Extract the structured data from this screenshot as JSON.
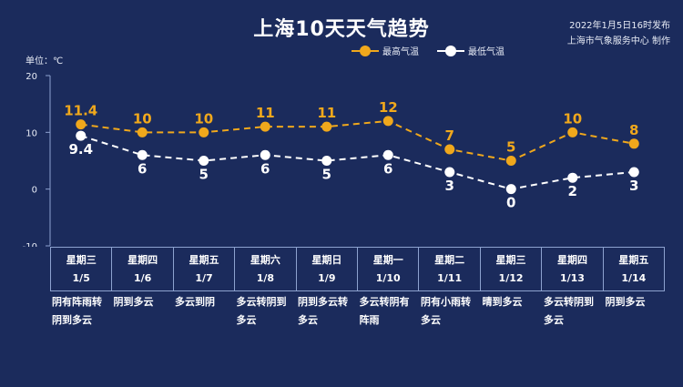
{
  "header": {
    "title": "上海10天天气趋势",
    "issue_time": "2022年1月5日16时发布",
    "issuer": "上海市气象服务中心 制作"
  },
  "unit_label": "单位：℃",
  "legend": {
    "high": "最高气温",
    "low": "最低气温"
  },
  "colors": {
    "background": "#1b2b5c",
    "high": "#f0a81c",
    "low": "#ffffff",
    "axis": "#8da2cf"
  },
  "chart_data": {
    "type": "line",
    "ylim": [
      -10,
      20
    ],
    "yticks": [
      -10,
      0,
      10,
      20
    ],
    "categories": [
      "1/5",
      "1/6",
      "1/7",
      "1/8",
      "1/9",
      "1/10",
      "1/11",
      "1/12",
      "1/13",
      "1/14"
    ],
    "series": [
      {
        "name": "最高气温",
        "values": [
          11.4,
          10,
          10,
          11,
          11,
          12,
          7,
          5,
          10,
          8
        ],
        "labels": [
          "11.4",
          "10",
          "10",
          "11",
          "11",
          "12",
          "7",
          "5",
          "10",
          "8"
        ]
      },
      {
        "name": "最低气温",
        "values": [
          9.4,
          6,
          5,
          6,
          5,
          6,
          3,
          0,
          2,
          3
        ],
        "labels": [
          "9.4",
          "6",
          "5",
          "6",
          "5",
          "6",
          "3",
          "0",
          "2",
          "3"
        ]
      }
    ]
  },
  "days": [
    {
      "weekday": "星期三",
      "date": "1/5",
      "weather": "阴有阵雨转阴到多云"
    },
    {
      "weekday": "星期四",
      "date": "1/6",
      "weather": "阴到多云"
    },
    {
      "weekday": "星期五",
      "date": "1/7",
      "weather": "多云到阴"
    },
    {
      "weekday": "星期六",
      "date": "1/8",
      "weather": "多云转阴到多云"
    },
    {
      "weekday": "星期日",
      "date": "1/9",
      "weather": "阴到多云转多云"
    },
    {
      "weekday": "星期一",
      "date": "1/10",
      "weather": "多云转阴有阵雨"
    },
    {
      "weekday": "星期二",
      "date": "1/11",
      "weather": "阴有小雨转多云"
    },
    {
      "weekday": "星期三",
      "date": "1/12",
      "weather": "晴到多云"
    },
    {
      "weekday": "星期四",
      "date": "1/13",
      "weather": "多云转阴到多云"
    },
    {
      "weekday": "星期五",
      "date": "1/14",
      "weather": "阴到多云"
    }
  ]
}
